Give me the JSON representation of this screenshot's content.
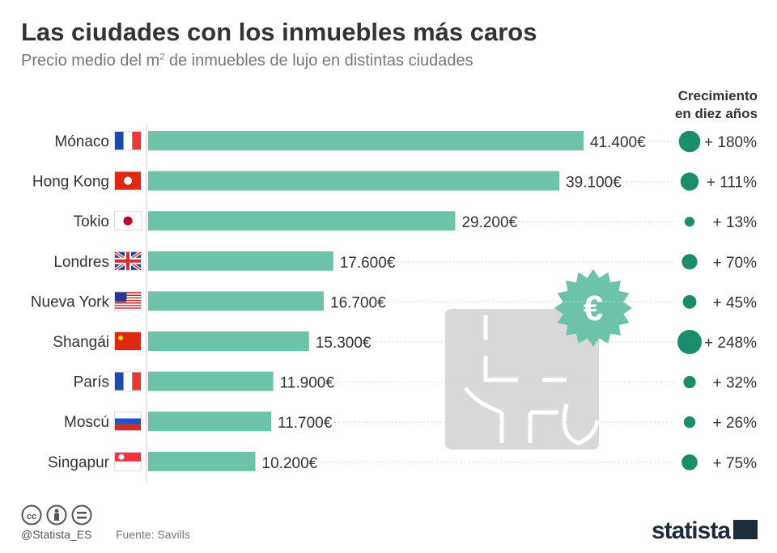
{
  "title": "Las ciudades con los inmuebles más caros",
  "subtitle_pre": "Precio medio del m",
  "subtitle_sup": "2",
  "subtitle_post": " de inmuebles de lujo en distintas ciudades",
  "growth_header_line1": "Crecimiento",
  "growth_header_line2": "en diez años",
  "footer": {
    "handle": "@Statista_ES",
    "source": "Fuente: Savills",
    "logo": "statista"
  },
  "colors": {
    "bar": "#6cc3aa",
    "dot": "#1b8c6c",
    "badge": "#6cc3aa",
    "icon": "#d9d9d9"
  },
  "chart_data": {
    "type": "bar",
    "orientation": "horizontal",
    "categories": [
      "Mónaco",
      "Hong Kong",
      "Tokio",
      "Londres",
      "Nueva York",
      "Shangái",
      "París",
      "Moscú",
      "Singapur"
    ],
    "values": [
      41400,
      39100,
      29200,
      17600,
      16700,
      15300,
      11900,
      11700,
      10200
    ],
    "value_labels": [
      "41.400€",
      "39.100€",
      "29.200€",
      "17.600€",
      "16.700€",
      "15.300€",
      "11.900€",
      "11.700€",
      "10.200€"
    ],
    "flags": [
      "fr",
      "hk",
      "jp",
      "gb",
      "us",
      "cn",
      "fr",
      "ru",
      "sg"
    ],
    "growth": [
      180,
      111,
      13,
      70,
      45,
      248,
      32,
      26,
      75
    ],
    "growth_labels": [
      "+ 180%",
      "+ 111%",
      "+ 13%",
      "+ 70%",
      "+ 45%",
      "+ 248%",
      "+ 32%",
      "+ 26%",
      "+ 75%"
    ]
  }
}
